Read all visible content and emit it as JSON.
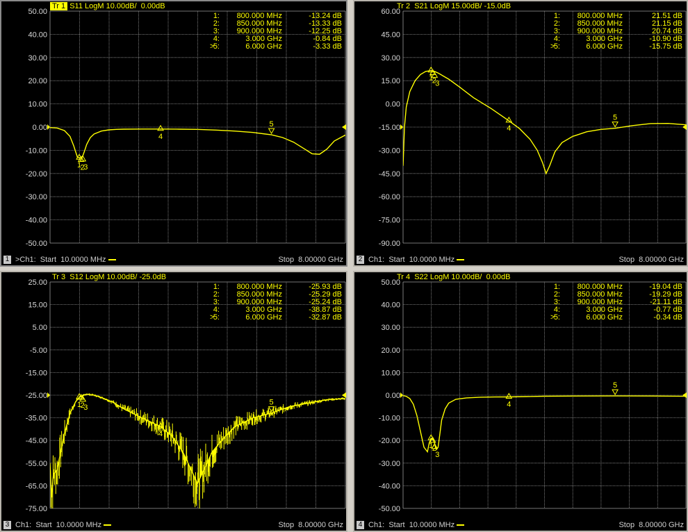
{
  "colors": {
    "trace": "#ffff00",
    "grid": "#9a9a9a",
    "background": "#000000",
    "text": "#ffff00"
  },
  "panels": [
    {
      "id": 1,
      "header": {
        "trace": "Tr 1",
        "text": "S11 LogM 10.00dB/  0.00dB"
      },
      "active": true,
      "footer": {
        "channel_number": "1",
        "start": ">Ch1:  Start  10.0000 MHz",
        "stop": "Stop  8.00000 GHz"
      },
      "yticks": [
        "50.00",
        "40.00",
        "30.00",
        "20.00",
        "10.00",
        "0.00",
        "-10.00",
        "-20.00",
        "-30.00",
        "-40.00",
        "-50.00"
      ],
      "markers": [
        {
          "num": "1:",
          "freq": "800.000 MHz",
          "value": "-13.24 dB",
          "active": false
        },
        {
          "num": "2:",
          "freq": "850.000 MHz",
          "value": "-13.33 dB",
          "active": false
        },
        {
          "num": "3:",
          "freq": "900.000 MHz",
          "value": "-12.25 dB",
          "active": false
        },
        {
          "num": "4:",
          "freq": "3.000 GHz",
          "value": "-0.84 dB",
          "active": false
        },
        {
          "num": "5:",
          "freq": "6.000 GHz",
          "value": "-3.33 dB",
          "active": true
        }
      ]
    },
    {
      "id": 2,
      "header": {
        "trace": "Tr 2",
        "text": "S21 LogM 15.00dB/ -15.0dB"
      },
      "active": false,
      "footer": {
        "channel_number": "2",
        "start": "Ch1:  Start  10.0000 MHz",
        "stop": "Stop  8.00000 GHz"
      },
      "yticks": [
        "60.00",
        "45.00",
        "30.00",
        "15.00",
        "0.00",
        "-15.00",
        "-30.00",
        "-45.00",
        "-60.00",
        "-75.00",
        "-90.00"
      ],
      "markers": [
        {
          "num": "1:",
          "freq": "800.000 MHz",
          "value": "21.51 dB",
          "active": false
        },
        {
          "num": "2:",
          "freq": "850.000 MHz",
          "value": "21.15 dB",
          "active": false
        },
        {
          "num": "3:",
          "freq": "900.000 MHz",
          "value": "20.74 dB",
          "active": false
        },
        {
          "num": "4:",
          "freq": "3.000 GHz",
          "value": "-10.90 dB",
          "active": false
        },
        {
          "num": "5:",
          "freq": "6.000 GHz",
          "value": "-15.75 dB",
          "active": true
        }
      ]
    },
    {
      "id": 3,
      "header": {
        "trace": "Tr 3",
        "text": "S12 LogM 10.00dB/ -25.0dB"
      },
      "active": false,
      "footer": {
        "channel_number": "3",
        "start": "Ch1:  Start  10.0000 MHz",
        "stop": "Stop  8.00000 GHz"
      },
      "yticks": [
        "25.00",
        "15.00",
        "5.00",
        "-5.00",
        "-15.00",
        "-25.00",
        "-35.00",
        "-45.00",
        "-55.00",
        "-65.00",
        "-75.00"
      ],
      "markers": [
        {
          "num": "1:",
          "freq": "800.000 MHz",
          "value": "-25.93 dB",
          "active": false
        },
        {
          "num": "2:",
          "freq": "850.000 MHz",
          "value": "-25.29 dB",
          "active": false
        },
        {
          "num": "3:",
          "freq": "900.000 MHz",
          "value": "-25.24 dB",
          "active": false
        },
        {
          "num": "4:",
          "freq": "3.000 GHz",
          "value": "-38.87 dB",
          "active": false
        },
        {
          "num": "5:",
          "freq": "6.000 GHz",
          "value": "-32.87 dB",
          "active": true
        }
      ]
    },
    {
      "id": 4,
      "header": {
        "trace": "Tr 4",
        "text": "S22 LogM 10.00dB/  0.00dB"
      },
      "active": false,
      "footer": {
        "channel_number": "4",
        "start": "Ch1:  Start  10.0000 MHz",
        "stop": "Stop  8.00000 GHz"
      },
      "yticks": [
        "50.00",
        "40.00",
        "30.00",
        "20.00",
        "10.00",
        "0.00",
        "-10.00",
        "-20.00",
        "-30.00",
        "-40.00",
        "-50.00"
      ],
      "markers": [
        {
          "num": "1:",
          "freq": "800.000 MHz",
          "value": "-19.04 dB",
          "active": false
        },
        {
          "num": "2:",
          "freq": "850.000 MHz",
          "value": "-19.29 dB",
          "active": false
        },
        {
          "num": "3:",
          "freq": "900.000 MHz",
          "value": "-21.11 dB",
          "active": false
        },
        {
          "num": "4:",
          "freq": "3.000 GHz",
          "value": "-0.77 dB",
          "active": false
        },
        {
          "num": "5:",
          "freq": "6.000 GHz",
          "value": "-0.34 dB",
          "active": true
        }
      ]
    }
  ],
  "chart_data": [
    {
      "type": "line",
      "ylim": [
        -50,
        50
      ],
      "xlim": [
        0.01,
        8
      ],
      "grid": true,
      "markers": [
        {
          "label": "1",
          "x": 0.8,
          "y": -13.24
        },
        {
          "label": "2",
          "x": 0.85,
          "y": -13.33
        },
        {
          "label": "3",
          "x": 0.9,
          "y": -12.25
        },
        {
          "label": "4",
          "x": 3.0,
          "y": -0.84
        },
        {
          "label": "5",
          "x": 6.0,
          "y": -3.33
        }
      ],
      "series": [
        {
          "x": [
            0.01,
            0.2,
            0.4,
            0.55,
            0.65,
            0.75,
            0.8,
            0.85,
            0.9,
            0.95,
            1.0,
            1.1,
            1.2,
            1.4,
            1.6,
            1.8,
            2.0,
            2.5,
            3.0,
            3.5,
            4.0,
            4.5,
            5.0,
            5.5,
            6.0,
            6.3,
            6.6,
            6.9,
            7.1,
            7.3,
            7.5,
            7.7,
            8.0
          ],
          "y": [
            -0.2,
            -0.4,
            -1.5,
            -4,
            -8,
            -13,
            -13.24,
            -13.33,
            -12.25,
            -10,
            -7.5,
            -4.5,
            -3,
            -1.7,
            -1.2,
            -1.0,
            -0.9,
            -0.85,
            -0.84,
            -0.9,
            -1.0,
            -1.3,
            -1.7,
            -2.3,
            -3.33,
            -4.5,
            -6.5,
            -9.5,
            -11.5,
            -11.7,
            -9.5,
            -6,
            -3.4
          ]
        }
      ]
    },
    {
      "type": "line",
      "ylim": [
        -90,
        60
      ],
      "xlim": [
        0.01,
        8
      ],
      "grid": true,
      "markers": [
        {
          "label": "1",
          "x": 0.8,
          "y": 21.51
        },
        {
          "label": "2",
          "x": 0.85,
          "y": 21.15
        },
        {
          "label": "3",
          "x": 0.9,
          "y": 20.74
        },
        {
          "label": "4",
          "x": 3.0,
          "y": -10.9
        },
        {
          "label": "5",
          "x": 6.0,
          "y": -15.75
        }
      ],
      "series": [
        {
          "x": [
            0.01,
            0.05,
            0.1,
            0.2,
            0.35,
            0.5,
            0.65,
            0.8,
            0.9,
            1.0,
            1.3,
            1.6,
            2.0,
            2.5,
            3.0,
            3.3,
            3.6,
            3.8,
            3.95,
            4.05,
            4.15,
            4.3,
            4.5,
            4.8,
            5.2,
            5.6,
            6.0,
            6.5,
            7.0,
            7.5,
            8.0
          ],
          "y": [
            -40,
            -15,
            -2,
            8,
            15,
            19,
            21,
            21.5,
            21,
            20,
            16,
            11,
            4,
            -3,
            -10.9,
            -16,
            -23,
            -30,
            -38,
            -45,
            -40,
            -31,
            -25,
            -21,
            -18,
            -16.5,
            -15.75,
            -14,
            -12.7,
            -12.6,
            -13.5
          ]
        }
      ]
    },
    {
      "type": "line",
      "ylim": [
        -75,
        25
      ],
      "xlim": [
        0.01,
        8
      ],
      "grid": true,
      "markers": [
        {
          "label": "1",
          "x": 0.8,
          "y": -25.93
        },
        {
          "label": "2",
          "x": 0.85,
          "y": -25.29
        },
        {
          "label": "3",
          "x": 0.9,
          "y": -25.24
        },
        {
          "label": "4",
          "x": 3.0,
          "y": -38.87
        },
        {
          "label": "5",
          "x": 6.0,
          "y": -32.87
        }
      ],
      "series": [
        {
          "x": [
            0.01,
            0.05,
            0.1,
            0.2,
            0.3,
            0.4,
            0.55,
            0.7,
            0.8,
            0.9,
            1.0,
            1.2,
            1.4,
            1.7,
            2.0,
            2.5,
            3.0,
            3.3,
            3.6,
            3.8,
            4.0,
            4.2,
            4.4,
            4.7,
            5.0,
            5.5,
            6.0,
            6.5,
            7.0,
            7.5,
            8.0
          ],
          "y": [
            -55,
            -70,
            -60,
            -58,
            -50,
            -42,
            -33,
            -28,
            -25.9,
            -25.2,
            -24.5,
            -25,
            -26,
            -28,
            -31,
            -35,
            -38.87,
            -43,
            -50,
            -57,
            -64,
            -57,
            -50,
            -44,
            -39,
            -35,
            -32.87,
            -30,
            -28.5,
            -27,
            -26.5
          ]
        }
      ]
    },
    {
      "type": "line",
      "ylim": [
        -50,
        50
      ],
      "xlim": [
        0.01,
        8
      ],
      "grid": true,
      "markers": [
        {
          "label": "1",
          "x": 0.8,
          "y": -19.04
        },
        {
          "label": "2",
          "x": 0.85,
          "y": -19.29
        },
        {
          "label": "3",
          "x": 0.9,
          "y": -21.11
        },
        {
          "label": "4",
          "x": 3.0,
          "y": -0.77
        },
        {
          "label": "5",
          "x": 6.0,
          "y": -0.34
        }
      ],
      "series": [
        {
          "x": [
            0.01,
            0.1,
            0.2,
            0.3,
            0.4,
            0.5,
            0.6,
            0.7,
            0.75,
            0.8,
            0.85,
            0.9,
            0.95,
            1.0,
            1.05,
            1.1,
            1.2,
            1.3,
            1.5,
            1.8,
            2.2,
            2.6,
            3.0,
            3.5,
            4.0,
            5.0,
            6.0,
            7.0,
            8.0
          ],
          "y": [
            -0.2,
            -0.5,
            -1.5,
            -4,
            -9,
            -16,
            -23,
            -25,
            -21,
            -19.04,
            -19.29,
            -21.11,
            -24,
            -23,
            -17,
            -11,
            -6,
            -3.5,
            -1.8,
            -1.2,
            -0.9,
            -0.8,
            -0.77,
            -0.6,
            -0.45,
            -0.38,
            -0.34,
            -0.36,
            -0.5
          ]
        }
      ]
    }
  ]
}
